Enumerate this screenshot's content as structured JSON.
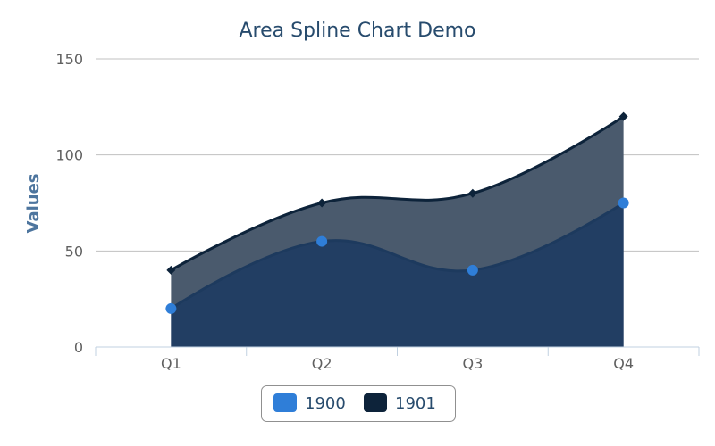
{
  "chart_data": {
    "type": "area",
    "title": "Area Spline Chart Demo",
    "xlabel": "",
    "ylabel": "Values",
    "categories": [
      "Q1",
      "Q2",
      "Q3",
      "Q4"
    ],
    "ylim": [
      0,
      150
    ],
    "yticks": [
      0,
      50,
      100,
      150
    ],
    "grid": true,
    "legend_position": "bottom-center",
    "series": [
      {
        "name": "1900",
        "values": [
          20,
          55,
          40,
          75
        ],
        "color": "#2f7ed8",
        "fill": "#223e63",
        "marker": "circle"
      },
      {
        "name": "1901",
        "values": [
          40,
          75,
          80,
          120
        ],
        "color": "#0d233a",
        "fill": "#4a5a6d",
        "marker": "diamond"
      }
    ]
  }
}
